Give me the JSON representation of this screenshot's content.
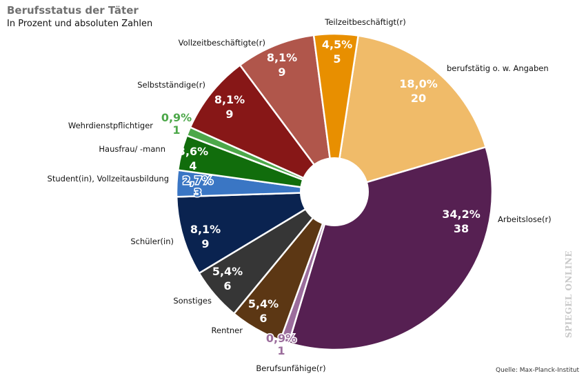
{
  "chart_data": {
    "type": "pie",
    "style": "donut",
    "title": "Berufsstatus der Täter",
    "subtitle": "In Prozent und absoluten Zahlen",
    "source": "Quelle: Max-Planck-Institut",
    "watermark": "SPIEGEL ONLINE",
    "slices": [
      {
        "label": "berufstätig o. w. Angaben",
        "percent": "18,0%",
        "count": 20,
        "color": "#f0bb69"
      },
      {
        "label": "Arbeitslose(r)",
        "percent": "34,2%",
        "count": 38,
        "color": "#562052"
      },
      {
        "label": "Berufsunfähige(r)",
        "percent": "0,9%",
        "count": 1,
        "color": "#9b6d9c"
      },
      {
        "label": "Rentner",
        "percent": "5,4%",
        "count": 6,
        "color": "#5c3714"
      },
      {
        "label": "Sonstiges",
        "percent": "5,4%",
        "count": 6,
        "color": "#363636"
      },
      {
        "label": "Schüler(in)",
        "percent": "8,1%",
        "count": 9,
        "color": "#0a2350"
      },
      {
        "label": "Student(in), Vollzeitausbildung",
        "percent": "2,7%",
        "count": 3,
        "color": "#3a76c4"
      },
      {
        "label": "Hausfrau/ -mann",
        "percent": "3,6%",
        "count": 4,
        "color": "#116d0c"
      },
      {
        "label": "Wehrdienstpflichtiger",
        "percent": "0,9%",
        "count": 1,
        "color": "#4da84a"
      },
      {
        "label": "Selbstständige(r)",
        "percent": "8,1%",
        "count": 9,
        "color": "#871717"
      },
      {
        "label": "Vollzeitbeschäftigte(r)",
        "percent": "8,1%",
        "count": 9,
        "color": "#b0564b"
      },
      {
        "label": "Teilzeitbeschäftigt(r)",
        "percent": "4,5%",
        "count": 5,
        "color": "#e88f00"
      }
    ]
  }
}
